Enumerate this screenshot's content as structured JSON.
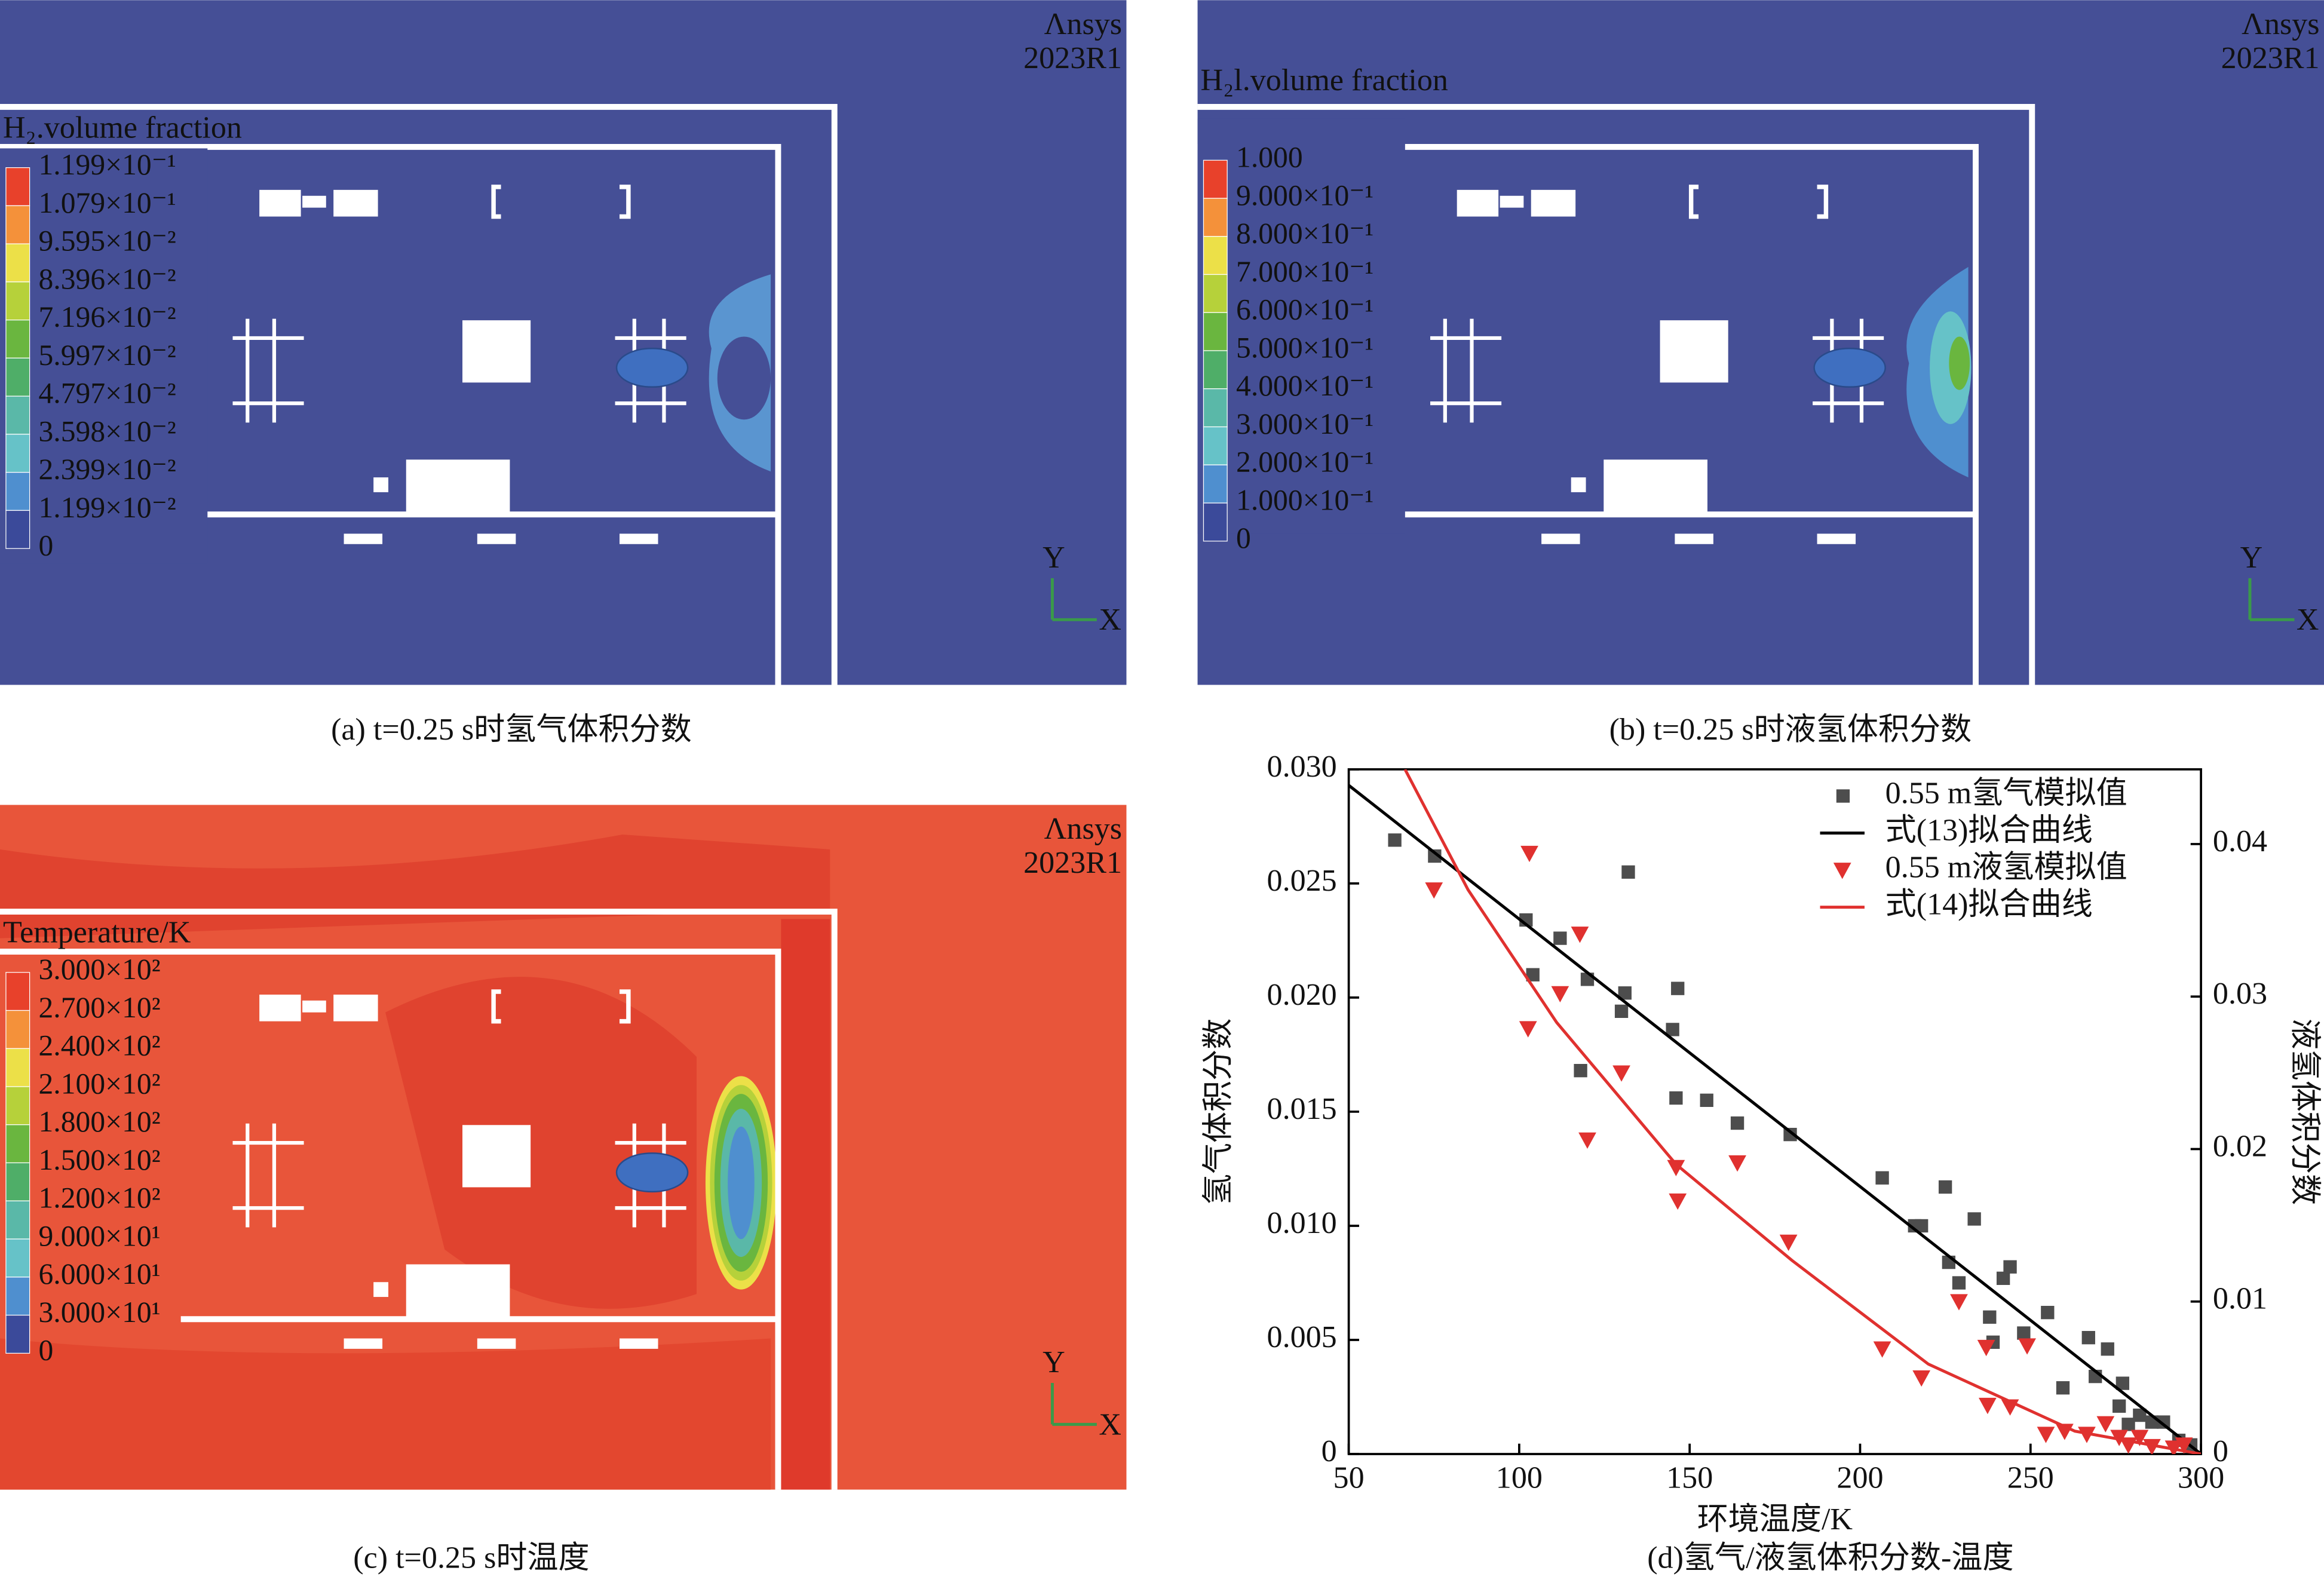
{
  "panels": [
    {
      "title": "H₂.volume fraction",
      "logo": "Λnsys",
      "version": "2023R1",
      "triad": [
        "Y",
        "X"
      ],
      "levels": [
        "1.199×10⁻¹",
        "1.079×10⁻¹",
        "9.595×10⁻²",
        "8.396×10⁻²",
        "7.196×10⁻²",
        "5.997×10⁻²",
        "4.797×10⁻²",
        "3.598×10⁻²",
        "2.399×10⁻²",
        "1.199×10⁻²",
        "0"
      ],
      "caption": "(a) t=0.25 s时氢气体积分数"
    },
    {
      "title": "H₂l.volume fraction",
      "logo": "Λnsys",
      "version": "2023R1",
      "triad": [
        "Y",
        "X"
      ],
      "levels": [
        "1.000",
        "9.000×10⁻¹",
        "8.000×10⁻¹",
        "7.000×10⁻¹",
        "6.000×10⁻¹",
        "5.000×10⁻¹",
        "4.000×10⁻¹",
        "3.000×10⁻¹",
        "2.000×10⁻¹",
        "1.000×10⁻¹",
        "0"
      ],
      "caption": "(b) t=0.25 s时液氢体积分数"
    },
    {
      "title": "Temperature/K",
      "logo": "Λnsys",
      "version": "2023R1",
      "triad": [
        "Y",
        "X"
      ],
      "levels": [
        "3.000×10²",
        "2.700×10²",
        "2.400×10²",
        "2.100×10²",
        "1.800×10²",
        "1.500×10²",
        "1.200×10²",
        "9.000×10¹",
        "6.000×10¹",
        "3.000×10¹",
        "0"
      ],
      "caption": "(c) t=0.25 s时温度"
    }
  ],
  "chart_data": {
    "type": "scatter",
    "caption": "(d)氢气/液氢体积分数-温度",
    "x_label": "环境温度/K",
    "y_label": "氢气体积分数",
    "y2_label": "液氢体积分数",
    "xlim": [
      50,
      300
    ],
    "xticks": [
      50,
      100,
      150,
      200,
      250,
      300
    ],
    "ylim": [
      0,
      0.03
    ],
    "yticks": [
      0,
      0.005,
      {
        "value": 0.01,
        "label": "0.010"
      },
      0.015,
      {
        "value": 0.02,
        "label": "0.020"
      },
      0.025,
      {
        "value": 0.03,
        "label": "0.030"
      }
    ],
    "y2lim": [
      0,
      0.0449
    ],
    "y2ticks": [
      0,
      0.01,
      0.02,
      0.03,
      0.04
    ],
    "y2_color": "#e0312f",
    "legend": "upper right",
    "series": [
      {
        "name": "0.55 m氢气模拟值",
        "color": "#4d4d4d",
        "marker": "square",
        "x": [
          63.5,
          75.2,
          102,
          104,
          112,
          120,
          118,
          131,
          130,
          132,
          146.5,
          145,
          146,
          155,
          164,
          179.5,
          206.5,
          216,
          218,
          225,
          226,
          229,
          233.5,
          242,
          244,
          238,
          239,
          248,
          255,
          259.5,
          267,
          269,
          272.6,
          277,
          276,
          278.7,
          282,
          285.6,
          289,
          293.5,
          297
        ],
        "values": [
          0.0269,
          0.0262,
          0.0234,
          0.021,
          0.0226,
          0.0208,
          0.0168,
          0.0202,
          0.0194,
          0.0255,
          0.0204,
          0.0186,
          0.0156,
          0.0155,
          0.0145,
          0.014,
          0.0121,
          0.01,
          0.01,
          0.0117,
          0.0084,
          0.0075,
          0.0103,
          0.0077,
          0.0082,
          0.006,
          0.0049,
          0.0053,
          0.0062,
          0.0029,
          0.0051,
          0.0034,
          0.0046,
          0.0031,
          0.0021,
          0.0013,
          0.0017,
          0.0014,
          0.0014,
          0.0006,
          0.0004
        ]
      },
      {
        "name": "式(13)拟合曲线",
        "color": "#000000",
        "marker": "line",
        "x": [
          50,
          300
        ],
        "values": [
          0.0293,
          0
        ]
      },
      {
        "name": "0.55 m液氢模拟值",
        "color": "#e0312f",
        "marker": "triangle",
        "axis": "y2",
        "x": [
          75,
          103,
          102.6,
          112,
          117.8,
          130,
          120,
          146,
          146.5,
          164,
          179,
          206.5,
          218,
          229,
          237,
          237.4,
          244,
          249,
          254.5,
          260,
          266.5,
          272,
          276,
          278.7,
          282,
          285.6,
          292,
          295
        ],
        "values": [
          0.037,
          0.0394,
          0.0279,
          0.0302,
          0.0341,
          0.025,
          0.0206,
          0.0188,
          0.0166,
          0.0191,
          0.0139,
          0.0069,
          0.005,
          0.01,
          0.007,
          0.0032,
          0.0031,
          0.0071,
          0.0013,
          0.0015,
          0.0013,
          0.002,
          0.0011,
          0.0006,
          0.0011,
          0.0005,
          0.0004,
          0.0006
        ]
      },
      {
        "name": "式(14)拟合曲线",
        "color": "#e0312f",
        "marker": "line",
        "axis": "y2",
        "x": [
          66.5,
          85,
          111,
          146,
          180,
          220,
          263,
          300
        ],
        "values": [
          0.0449,
          0.037,
          0.0283,
          0.019,
          0.0127,
          0.0059,
          0.0015,
          0
        ]
      }
    ]
  }
}
